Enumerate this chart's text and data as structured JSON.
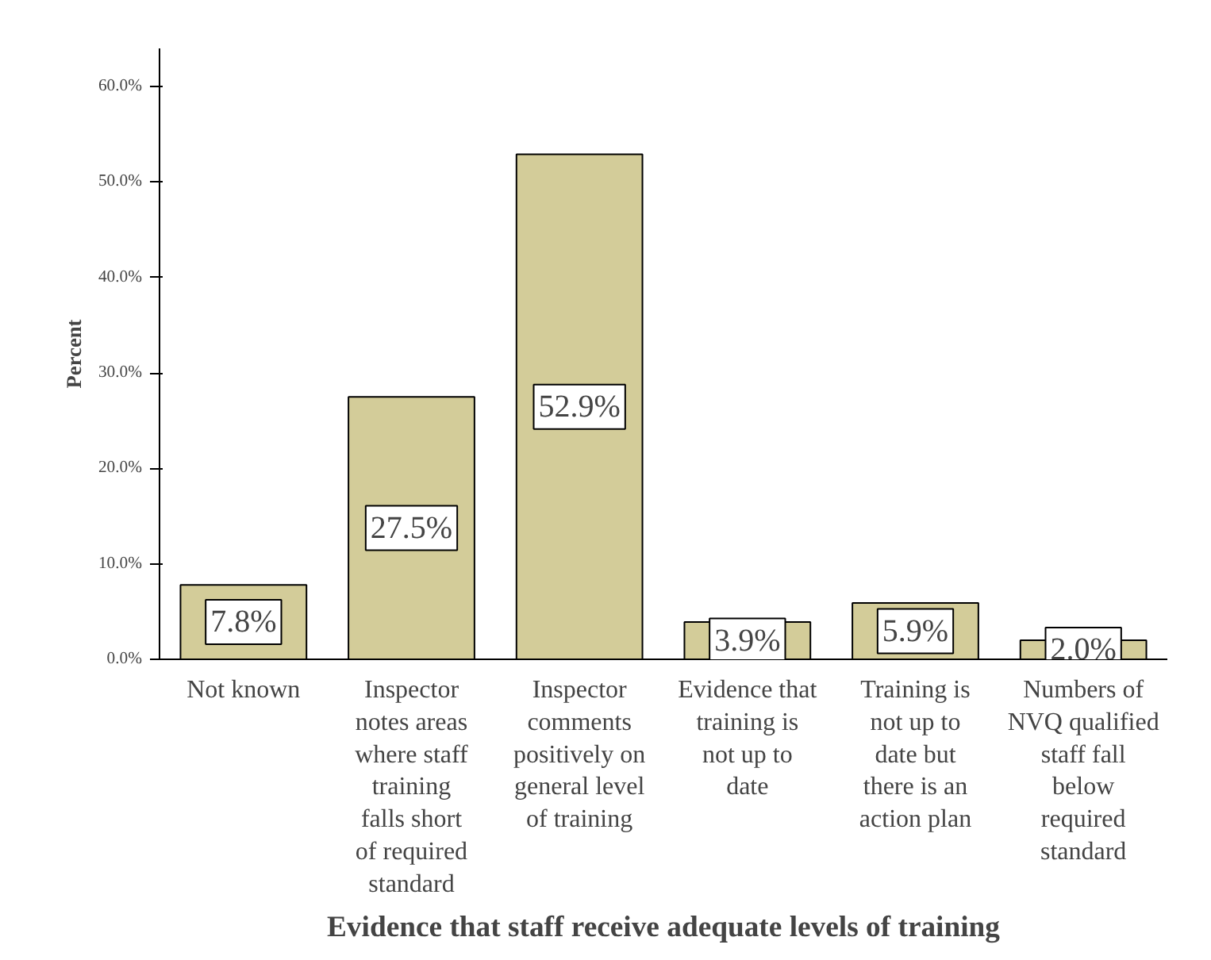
{
  "chart_data": {
    "type": "bar",
    "xlabel": "Evidence that staff receive adequate levels of training",
    "ylabel": "Percent",
    "categories": [
      "Not known",
      "Inspector notes areas where staff training falls short of required standard",
      "Inspector comments positively on general level of training",
      "Evidence that training is not up to date",
      "Training is not up to date but there is an action plan",
      "Numbers of NVQ qualified staff fall below required standard"
    ],
    "values": [
      7.8,
      27.5,
      52.9,
      3.9,
      5.9,
      2.0
    ],
    "value_labels": [
      "7.8%",
      "27.5%",
      "52.9%",
      "3.9%",
      "5.9%",
      "2.0%"
    ],
    "color": "#d3cc99",
    "grid": false,
    "ylim": [
      0,
      64
    ],
    "yticks": [
      {
        "value": 0,
        "label": "0.0%"
      },
      {
        "value": 10,
        "label": "10.0%"
      },
      {
        "value": 20,
        "label": "20.0%"
      },
      {
        "value": 30,
        "label": "30.0%"
      },
      {
        "value": 40,
        "label": "40.0%"
      },
      {
        "value": 50,
        "label": "50.0%"
      },
      {
        "value": 60,
        "label": "60.0%"
      }
    ]
  }
}
